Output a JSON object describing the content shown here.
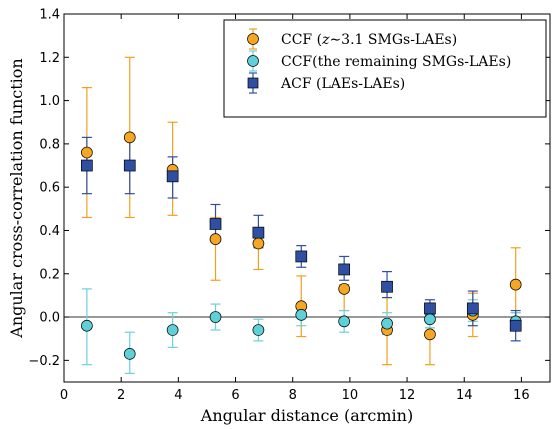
{
  "chart_data": {
    "type": "scatter",
    "title": "",
    "xlabel": "Angular distance (arcmin)",
    "ylabel": "Angular cross-correlation function",
    "xlim": [
      0,
      17
    ],
    "ylim": [
      -0.3,
      1.4
    ],
    "x_ticks": [
      0,
      2,
      4,
      6,
      8,
      10,
      12,
      14,
      16
    ],
    "y_ticks": [
      -0.2,
      0.0,
      0.2,
      0.4,
      0.6,
      0.8,
      1.0,
      1.2,
      1.4
    ],
    "x_tick_labels": [
      "0",
      "2",
      "4",
      "6",
      "8",
      "10",
      "12",
      "14",
      "16"
    ],
    "y_tick_labels": [
      "−0.2",
      "0.0",
      "0.2",
      "0.4",
      "0.6",
      "0.8",
      "1.0",
      "1.2",
      "1.4"
    ],
    "grid": false,
    "zero_line": true,
    "legend_position": "top-right",
    "series": [
      {
        "name": "CCF (z∼3.1 SMGs-LAEs)",
        "legend_prefix": "CCF (",
        "legend_italic": "z",
        "legend_suffix": "∼3.1 SMGs-LAEs)",
        "marker": "circle",
        "color": "#f5a623",
        "errcolor": "#f0a020",
        "x": [
          0.8,
          2.3,
          3.8,
          5.3,
          6.8,
          8.3,
          9.8,
          11.3,
          12.8,
          14.3,
          15.8
        ],
        "y": [
          0.76,
          0.83,
          0.68,
          0.36,
          0.34,
          0.05,
          0.13,
          -0.06,
          -0.08,
          0.01,
          0.15
        ],
        "err_low": [
          0.3,
          0.37,
          0.21,
          0.19,
          0.12,
          0.14,
          0.1,
          0.16,
          0.14,
          0.1,
          0.13
        ],
        "err_high": [
          0.3,
          0.37,
          0.22,
          0.1,
          0.05,
          0.14,
          0.02,
          0.15,
          0.03,
          0.1,
          0.17
        ]
      },
      {
        "name": "CCF(the remaining SMGs-LAEs)",
        "marker": "circle",
        "color": "#5fcfd8",
        "errcolor": "#6cd0da",
        "x": [
          0.8,
          2.3,
          3.8,
          5.3,
          6.8,
          8.3,
          9.8,
          11.3,
          12.8,
          14.3,
          15.8
        ],
        "y": [
          -0.04,
          -0.17,
          -0.06,
          0.0,
          -0.06,
          0.01,
          -0.02,
          -0.03,
          -0.01,
          0.03,
          -0.02
        ],
        "err_low": [
          0.18,
          0.09,
          0.08,
          0.06,
          0.05,
          0.05,
          0.05,
          0.05,
          0.04,
          0.05,
          0.04
        ],
        "err_high": [
          0.17,
          0.1,
          0.08,
          0.06,
          0.05,
          0.05,
          0.05,
          0.05,
          0.04,
          0.05,
          0.04
        ]
      },
      {
        "name": "ACF (LAEs-LAEs)",
        "marker": "square",
        "color": "#2f4fa3",
        "errcolor": "#2f4fa3",
        "x": [
          0.8,
          2.3,
          3.8,
          5.3,
          6.8,
          8.3,
          9.8,
          11.3,
          12.8,
          14.3,
          15.8
        ],
        "y": [
          0.7,
          0.7,
          0.65,
          0.43,
          0.39,
          0.28,
          0.22,
          0.14,
          0.04,
          0.04,
          -0.04
        ],
        "err_low": [
          0.13,
          0.13,
          0.1,
          0.06,
          0.07,
          0.05,
          0.05,
          0.05,
          0.03,
          0.08,
          0.07
        ],
        "err_high": [
          0.13,
          0.13,
          0.09,
          0.09,
          0.08,
          0.05,
          0.06,
          0.07,
          0.04,
          0.08,
          0.07
        ]
      }
    ]
  }
}
